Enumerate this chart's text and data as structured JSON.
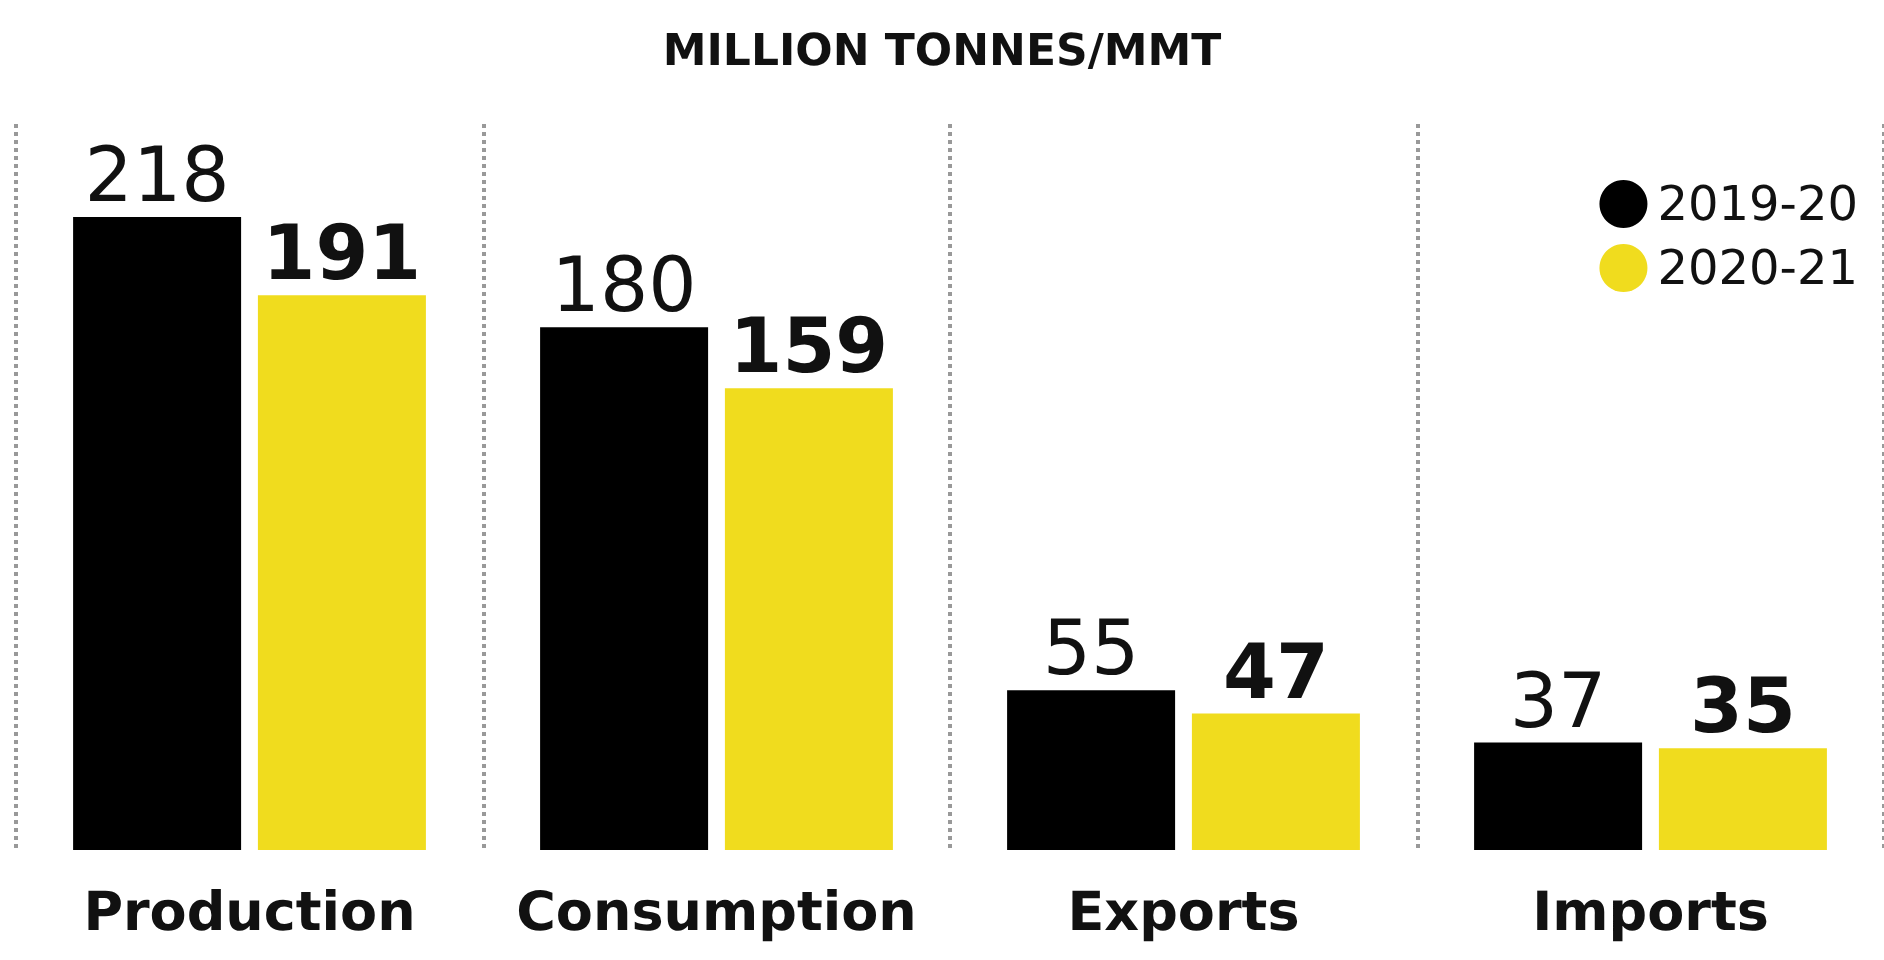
{
  "chart_data": {
    "type": "bar",
    "title": "MILLION TONNES/MMT",
    "categories": [
      "Production",
      "Consumption",
      "Exports",
      "Imports"
    ],
    "series": [
      {
        "name": "2019-20",
        "color": "#000000",
        "values": [
          218,
          180,
          55,
          37
        ]
      },
      {
        "name": "2020-21",
        "color": "#f0dc1e",
        "values": [
          191,
          159,
          47,
          35
        ]
      }
    ],
    "data_labels": true,
    "legend": "top right",
    "grid": "x"
  }
}
